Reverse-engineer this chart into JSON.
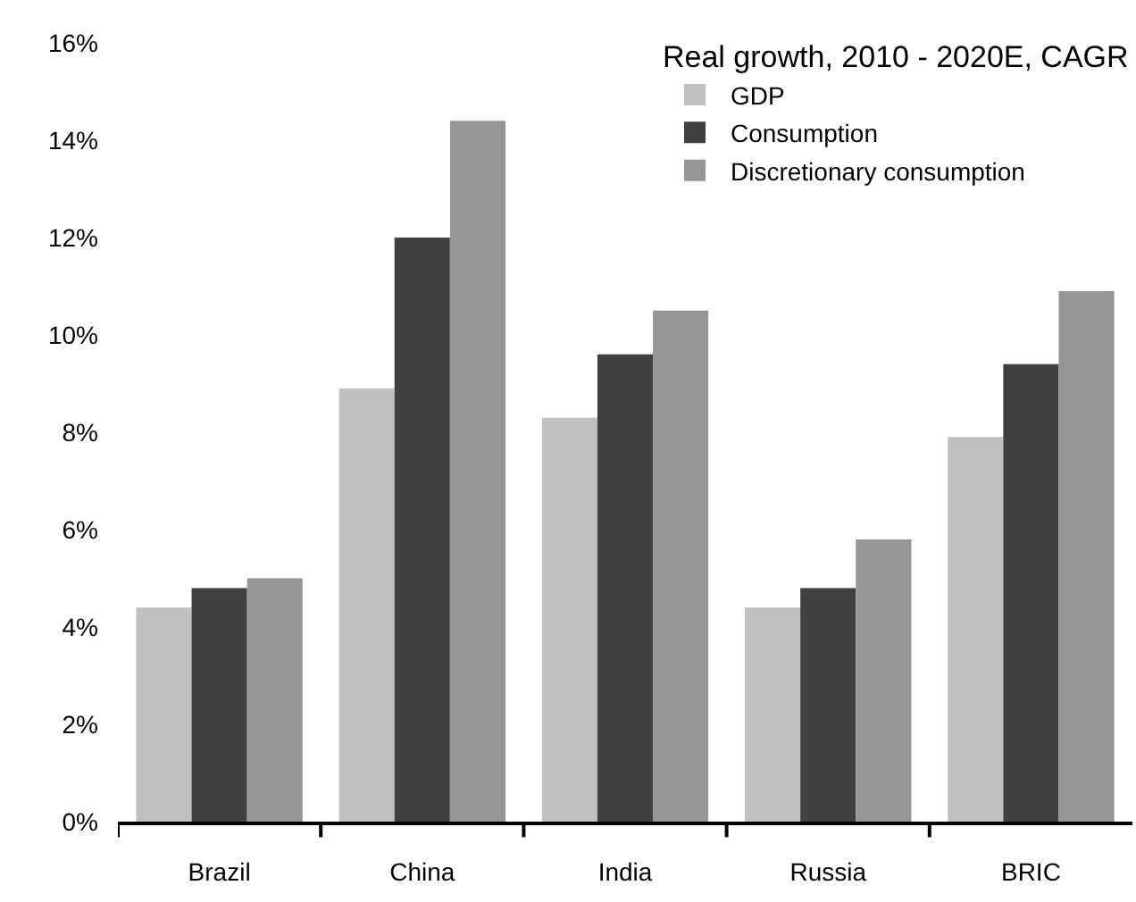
{
  "chart_data": {
    "type": "bar",
    "legend_title": "Real growth, 2010 - 2020E, CAGR",
    "categories": [
      "Brazil",
      "China",
      "India",
      "Russia",
      "BRIC"
    ],
    "series": [
      {
        "name": "GDP",
        "color": "#c0c0c0",
        "values": [
          4.4,
          8.9,
          8.3,
          4.4,
          7.9
        ]
      },
      {
        "name": "Consumption",
        "color": "#404040",
        "values": [
          4.8,
          12.0,
          9.6,
          4.8,
          9.4
        ]
      },
      {
        "name": "Discretionary consumption",
        "color": "#969696",
        "values": [
          5.0,
          14.4,
          10.5,
          5.8,
          10.9
        ]
      }
    ],
    "ylim": [
      0,
      16
    ],
    "yticks": [
      {
        "value": 0,
        "label": "0%"
      },
      {
        "value": 2,
        "label": "2%"
      },
      {
        "value": 4,
        "label": "4%"
      },
      {
        "value": 6,
        "label": "6%"
      },
      {
        "value": 8,
        "label": "8%"
      },
      {
        "value": 10,
        "label": "10%"
      },
      {
        "value": 12,
        "label": "12%"
      },
      {
        "value": 14,
        "label": "14%"
      },
      {
        "value": 16,
        "label": "16%"
      }
    ],
    "legend": "top right"
  }
}
